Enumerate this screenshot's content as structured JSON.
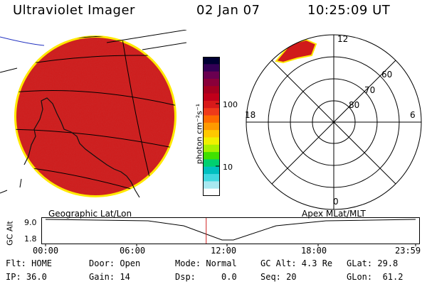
{
  "header": {
    "instrument": "Ultraviolet Imager",
    "date": "02 Jan 07",
    "time": "10:25:09 UT"
  },
  "colorbar": {
    "unit_label": "photon cm⁻²s⁻¹",
    "ticks": [
      "100",
      "10"
    ],
    "colors": [
      "#000033",
      "#330055",
      "#6a0050",
      "#8a003a",
      "#a50020",
      "#c0001a",
      "#d81a1a",
      "#ef3a1a",
      "#ff6a00",
      "#ff9a00",
      "#ffc800",
      "#f0f000",
      "#a8f000",
      "#40e000",
      "#00d070",
      "#00c0c0",
      "#40d8e0",
      "#a8e8f0",
      "#ffffff"
    ]
  },
  "polar_plot": {
    "labels": {
      "top": "12",
      "left": "18",
      "right": "6",
      "bottom": "0"
    },
    "ring_labels": [
      "60",
      "70",
      "80"
    ]
  },
  "left_map": {
    "fill_color": "#cf1c1c",
    "edge_color": "#ffe800"
  },
  "timeline": {
    "left_caption": "Geographic Lat/Lon",
    "right_caption": "Apex MLat/MLT",
    "axis_title": "GC Alt",
    "y_ticks": [
      "9.0",
      "1.8"
    ],
    "x_ticks": [
      "00:00",
      "06:00",
      "12:00",
      "18:00",
      "23:59"
    ],
    "current_time_fraction": 0.4341,
    "marker_color": "#d02020"
  },
  "status": {
    "row1": {
      "flt": "Flt: HOME",
      "door": "Door: Open",
      "mode": "Mode: Normal",
      "gcalt": "GC Alt: 4.3 Re",
      "glat": "GLat:  29.8"
    },
    "row2": {
      "ip": "IP: 36.0",
      "gain": "Gain: 14",
      "dsp": "Dsp:     0.0",
      "seq": "Seq: 20",
      "glon": "GLon:  61.2"
    }
  }
}
